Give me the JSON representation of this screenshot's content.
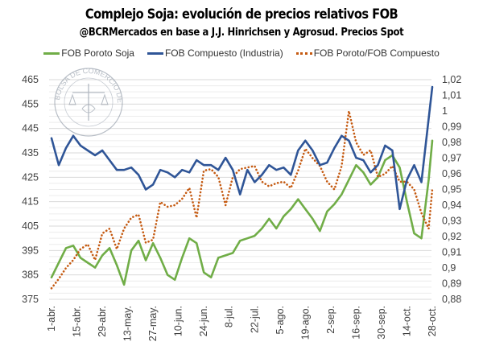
{
  "chart_data": {
    "type": "line",
    "title": "Complejo Soja: evolución de precios relativos FOB",
    "subtitle": "@BCRMercados en base a J.J. Hinrichsen y Agrosud. Precios Spot",
    "watermark": "BOLSA DE COMERCIO DE ROSARIO",
    "legend_position": "top",
    "grid": true,
    "x_ticks": [
      "1-abr.",
      "15-abr.",
      "29-abr.",
      "13-may.",
      "27-may.",
      "10-jun.",
      "24-jun.",
      "8-jul.",
      "22-jul.",
      "5-ago.",
      "19-ago.",
      "2-sep.",
      "16-sep.",
      "30-sep.",
      "14-oct.",
      "28-oct."
    ],
    "x_days_range": [
      0,
      210
    ],
    "y_left": {
      "ticks": [
        "375",
        "385",
        "395",
        "405",
        "415",
        "425",
        "435",
        "445",
        "455",
        "465"
      ],
      "ylim": [
        375,
        465
      ]
    },
    "y_right": {
      "ticks": [
        "0,88",
        "0,89",
        "0,9",
        "0,91",
        "0,92",
        "0,93",
        "0,94",
        "0,95",
        "0,96",
        "0,97",
        "0,98",
        "0,99",
        "1",
        "1,01",
        "1,02"
      ],
      "ylim": [
        0.88,
        1.02
      ]
    },
    "x_days": [
      0,
      4,
      8,
      12,
      16,
      20,
      24,
      28,
      32,
      36,
      40,
      44,
      48,
      52,
      56,
      60,
      64,
      68,
      72,
      76,
      80,
      84,
      88,
      92,
      96,
      100,
      104,
      108,
      112,
      116,
      120,
      124,
      128,
      132,
      136,
      140,
      144,
      148,
      152,
      156,
      160,
      164,
      168,
      172,
      176,
      180,
      184,
      188,
      192,
      196,
      200,
      204,
      208,
      210
    ],
    "series": [
      {
        "name": "FOB Poroto Soja",
        "axis": "left",
        "color": "#70ad47",
        "style": "solid",
        "values": [
          384,
          390,
          396,
          397,
          392,
          390,
          388,
          393,
          396,
          389,
          381,
          395,
          399,
          391,
          398,
          392,
          385,
          383,
          392,
          400,
          398,
          386,
          384,
          392,
          393,
          394,
          399,
          400,
          401,
          404,
          408,
          404,
          409,
          412,
          416,
          412,
          408,
          403,
          411,
          414,
          418,
          424,
          430,
          427,
          422,
          425,
          432,
          434,
          429,
          415,
          402,
          400,
          424,
          440
        ]
      },
      {
        "name": "FOB Compuesto (Industria)",
        "axis": "left",
        "color": "#2f5597",
        "style": "solid",
        "values": [
          441,
          430,
          437,
          442,
          438,
          436,
          434,
          436,
          432,
          428,
          428,
          429,
          426,
          420,
          422,
          428,
          427,
          425,
          428,
          427,
          432,
          430,
          430,
          428,
          433,
          428,
          418,
          428,
          423,
          426,
          430,
          428,
          429,
          426,
          436,
          440,
          436,
          430,
          431,
          437,
          442,
          440,
          433,
          432,
          427,
          430,
          438,
          436,
          412,
          424,
          430,
          423,
          449,
          462
        ]
      },
      {
        "name": "FOB Poroto/FOB Compuesto",
        "axis": "right",
        "color": "#c55a11",
        "style": "dotted",
        "values": [
          0.887,
          0.893,
          0.9,
          0.905,
          0.912,
          0.915,
          0.905,
          0.922,
          0.925,
          0.912,
          0.925,
          0.932,
          0.934,
          0.916,
          0.918,
          0.942,
          0.939,
          0.94,
          0.944,
          0.951,
          0.932,
          0.962,
          0.963,
          0.958,
          0.94,
          0.958,
          0.963,
          0.964,
          0.965,
          0.955,
          0.952,
          0.954,
          0.955,
          0.951,
          0.962,
          0.976,
          0.97,
          0.965,
          0.955,
          0.95,
          0.965,
          1.0,
          0.98,
          0.972,
          0.975,
          0.958,
          0.96,
          0.965,
          0.955,
          0.955,
          0.95,
          0.935,
          0.925,
          0.95
        ]
      }
    ]
  }
}
